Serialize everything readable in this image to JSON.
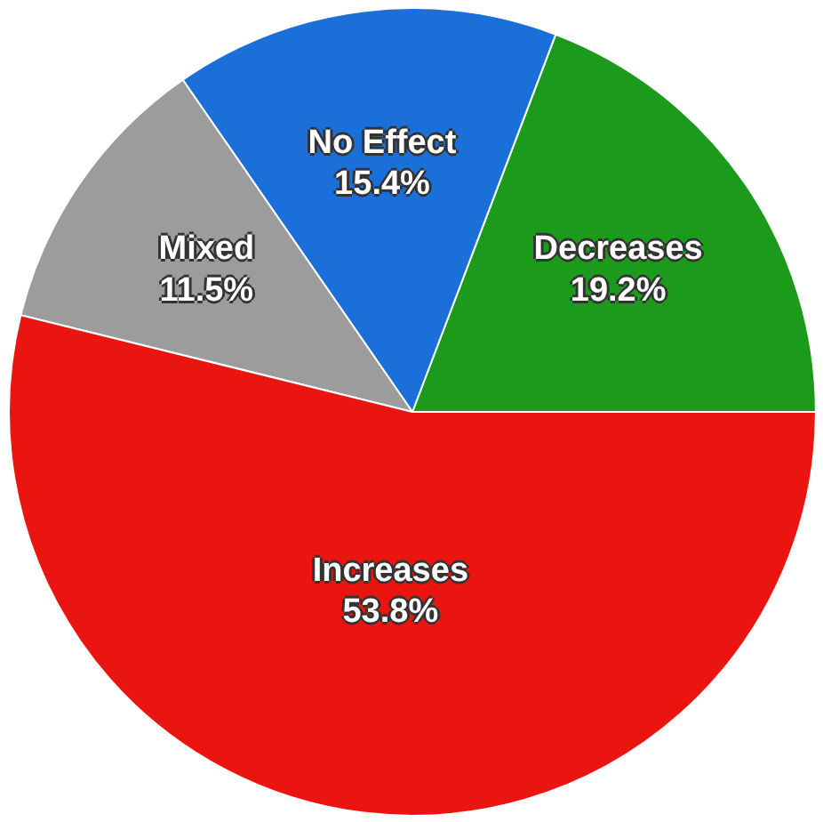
{
  "chart_data": {
    "type": "pie",
    "categories": [
      "Decreases",
      "No Effect",
      "Mixed",
      "Increases"
    ],
    "values": [
      19.2,
      15.4,
      11.5,
      53.8
    ],
    "value_labels": [
      "19.2%",
      "15.4%",
      "11.5%",
      "53.8%"
    ],
    "colors": [
      "#1c9a1c",
      "#1a6fd8",
      "#9c9c9c",
      "#ea1410"
    ]
  }
}
